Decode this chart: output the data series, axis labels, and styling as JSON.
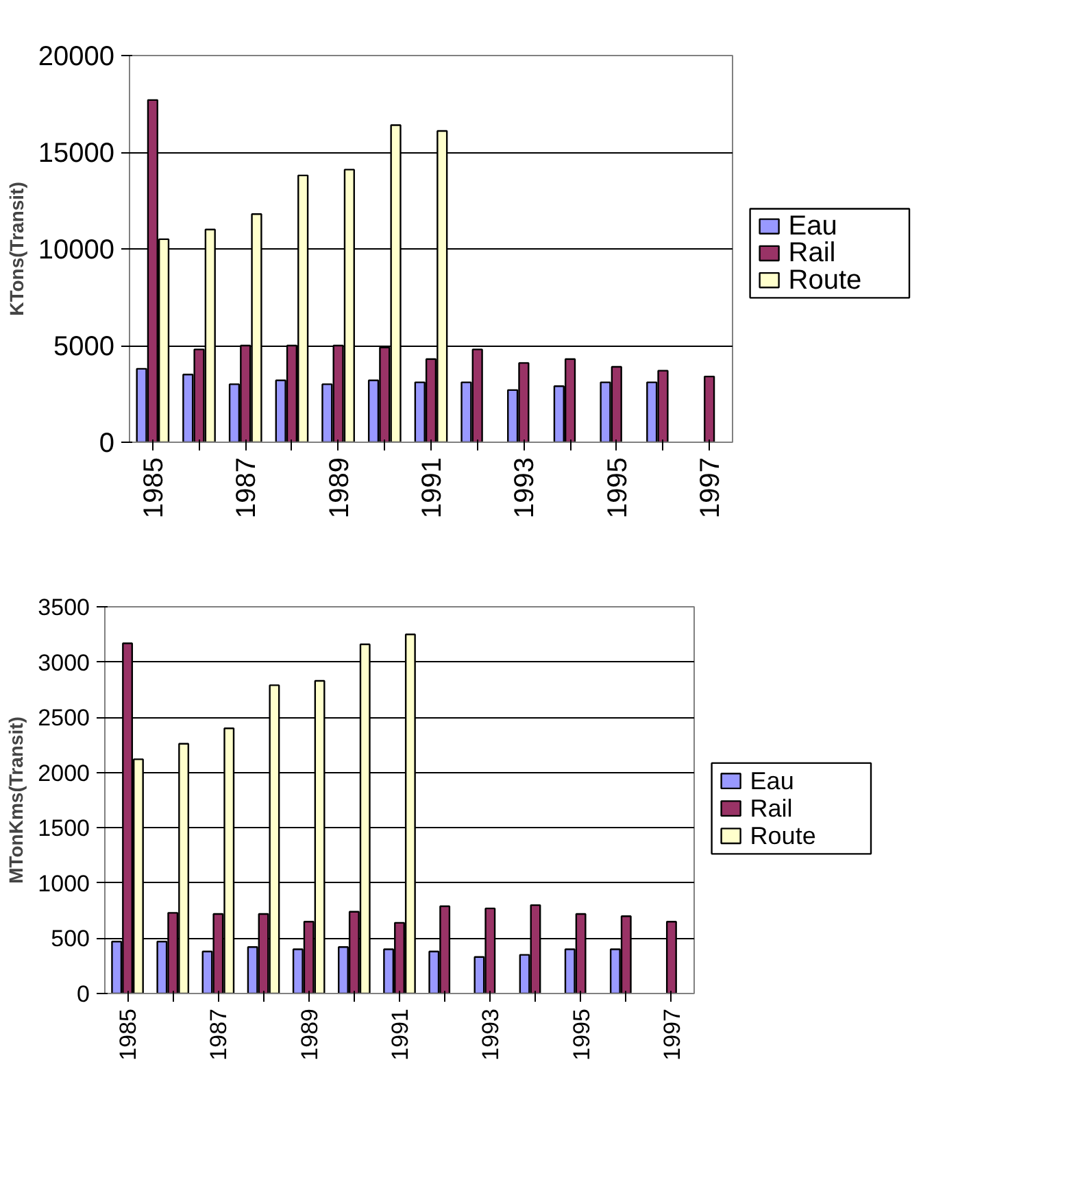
{
  "chart_data": [
    {
      "type": "bar",
      "ylabel": "KTons(Transit)",
      "categories": [
        "1985",
        null,
        "1987",
        null,
        "1989",
        null,
        "1991",
        null,
        "1993",
        null,
        "1995",
        null,
        "1997"
      ],
      "ylim": [
        0,
        20000
      ],
      "yticks": [
        0,
        5000,
        10000,
        15000,
        20000
      ],
      "grid": "y",
      "legend": "right",
      "series": [
        {
          "name": "Eau",
          "color": "#9999ff",
          "values": [
            3800,
            3500,
            3000,
            3200,
            3000,
            3200,
            3100,
            3100,
            2700,
            2900,
            3100,
            3100,
            null
          ]
        },
        {
          "name": "Rail",
          "color": "#993366",
          "values": [
            17700,
            4800,
            5000,
            5000,
            5000,
            4900,
            4300,
            4800,
            4100,
            4300,
            3900,
            3700,
            3400
          ]
        },
        {
          "name": "Route",
          "color": "#ffffcc",
          "values": [
            10500,
            11000,
            11800,
            13800,
            14100,
            16400,
            16100,
            null,
            null,
            null,
            null,
            null,
            null
          ]
        }
      ]
    },
    {
      "type": "bar",
      "ylabel": "MTonKms(Transit)",
      "categories": [
        "1985",
        null,
        "1987",
        null,
        "1989",
        null,
        "1991",
        null,
        "1993",
        null,
        "1995",
        null,
        "1997"
      ],
      "ylim": [
        0,
        3500
      ],
      "yticks": [
        0,
        500,
        1000,
        1500,
        2000,
        2500,
        3000,
        3500
      ],
      "grid": "y",
      "legend": "right",
      "series": [
        {
          "name": "Eau",
          "color": "#9999ff",
          "values": [
            470,
            470,
            380,
            420,
            400,
            420,
            400,
            380,
            330,
            350,
            400,
            400,
            null
          ]
        },
        {
          "name": "Rail",
          "color": "#993366",
          "values": [
            3170,
            730,
            720,
            720,
            650,
            740,
            640,
            790,
            770,
            800,
            720,
            700,
            650
          ]
        },
        {
          "name": "Route",
          "color": "#ffffcc",
          "values": [
            2120,
            2260,
            2400,
            2790,
            2830,
            3160,
            3250,
            null,
            null,
            null,
            null,
            null,
            null
          ]
        }
      ]
    }
  ]
}
